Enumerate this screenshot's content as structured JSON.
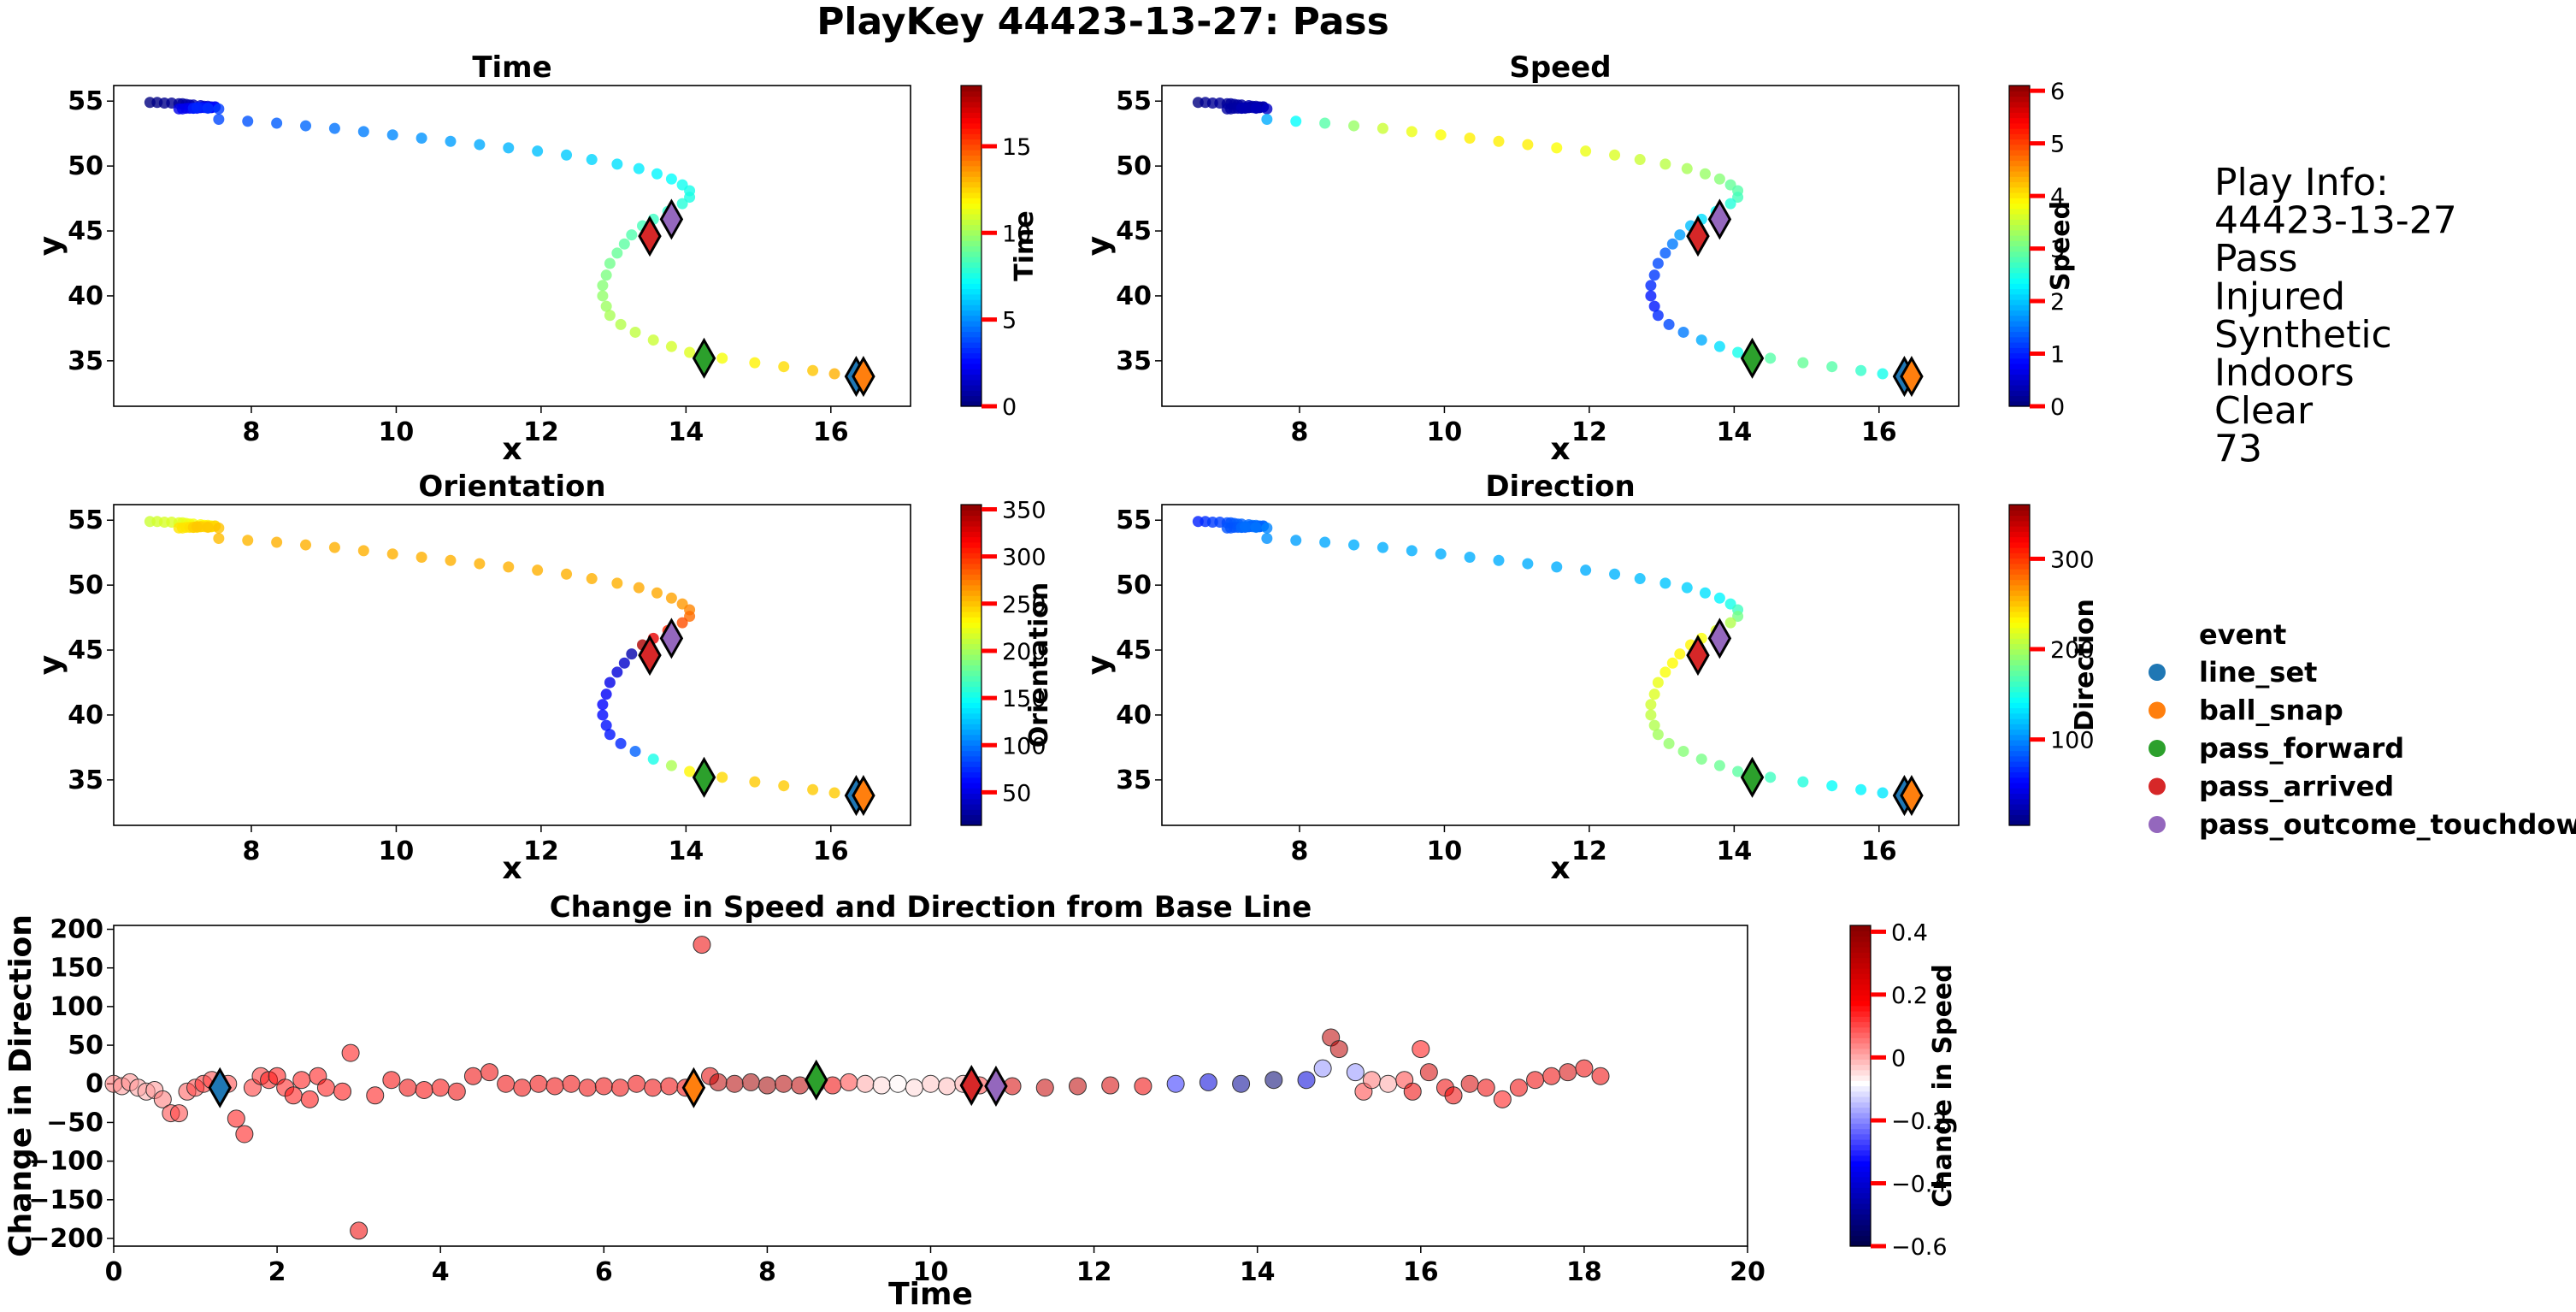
{
  "figure": {
    "title": "PlayKey 44423-13-27: Pass"
  },
  "play_info": {
    "lines": [
      "Play Info:",
      "44423-13-27",
      "Pass",
      "Injured",
      "Synthetic",
      "Indoors",
      "Clear",
      "73"
    ]
  },
  "legend": {
    "title": "event",
    "entries": [
      {
        "label": "line_set",
        "color": "#1f77b4"
      },
      {
        "label": "ball_snap",
        "color": "#ff7f0e"
      },
      {
        "label": "pass_forward",
        "color": "#2ca02c"
      },
      {
        "label": "pass_arrived",
        "color": "#d62728"
      },
      {
        "label": "pass_outcome_touchdown",
        "color": "#9467bd"
      }
    ]
  },
  "chart_data": [
    {
      "type": "scatter",
      "title": "Time",
      "xlabel": "x",
      "ylabel": "y",
      "xlim": [
        6.1,
        17.1
      ],
      "ylim": [
        31.5,
        56.2
      ],
      "xticks": [
        8,
        10,
        12,
        14,
        16
      ],
      "yticks": [
        35,
        40,
        45,
        50,
        55
      ],
      "colormap": "jet",
      "color_variable": "time",
      "colorbar": {
        "label": "Time",
        "range": [
          0,
          18.5
        ],
        "ticks": [
          0,
          5,
          10,
          15
        ]
      }
    },
    {
      "type": "scatter",
      "title": "Speed",
      "xlabel": "x",
      "ylabel": "y",
      "xlim": [
        6.1,
        17.1
      ],
      "ylim": [
        31.5,
        56.2
      ],
      "xticks": [
        8,
        10,
        12,
        14,
        16
      ],
      "yticks": [
        35,
        40,
        45,
        50,
        55
      ],
      "colormap": "jet",
      "color_variable": "speed",
      "colorbar": {
        "label": "Speed",
        "range": [
          0,
          6.1
        ],
        "ticks": [
          0,
          1,
          2,
          3,
          4,
          5,
          6
        ]
      }
    },
    {
      "type": "scatter",
      "title": "Orientation",
      "xlabel": "x",
      "ylabel": "y",
      "xlim": [
        6.1,
        17.1
      ],
      "ylim": [
        31.5,
        56.2
      ],
      "xticks": [
        8,
        10,
        12,
        14,
        16
      ],
      "yticks": [
        35,
        40,
        45,
        50,
        55
      ],
      "colormap": "jet",
      "color_variable": "orientation",
      "colorbar": {
        "label": "Orientation",
        "range": [
          15,
          355
        ],
        "ticks": [
          50,
          100,
          150,
          200,
          250,
          300,
          350
        ]
      }
    },
    {
      "type": "scatter",
      "title": "Direction",
      "xlabel": "x",
      "ylabel": "y",
      "xlim": [
        6.1,
        17.1
      ],
      "ylim": [
        31.5,
        56.2
      ],
      "xticks": [
        8,
        10,
        12,
        14,
        16
      ],
      "yticks": [
        35,
        40,
        45,
        50,
        55
      ],
      "colormap": "jet",
      "color_variable": "direction",
      "colorbar": {
        "label": "Direction",
        "range": [
          5,
          360
        ],
        "ticks": [
          100,
          200,
          300
        ]
      }
    },
    {
      "type": "scatter",
      "title": "Change in Speed and Direction from Base Line",
      "xlabel": "Time",
      "ylabel": "Change in Direction",
      "xlim": [
        0,
        20
      ],
      "ylim": [
        -210,
        205
      ],
      "xticks": [
        0,
        2,
        4,
        6,
        8,
        10,
        12,
        14,
        16,
        18,
        20
      ],
      "yticks": [
        -200,
        -150,
        -100,
        -50,
        0,
        50,
        100,
        150,
        200
      ],
      "colormap": "seismic",
      "color_variable": "change_in_speed",
      "colorbar": {
        "label": "Change in Speed",
        "range": [
          -0.6,
          0.42
        ],
        "ticks": [
          -0.6,
          -0.4,
          -0.2,
          0.0,
          0.2,
          0.4
        ]
      }
    }
  ],
  "trajectory": [
    {
      "t": 0.0,
      "x": 6.6,
      "y": 54.9,
      "s": 0.0,
      "o": 210,
      "dir": 60,
      "dchg": 0
    },
    {
      "t": 0.1,
      "x": 6.7,
      "y": 54.9,
      "s": 0.1,
      "o": 212,
      "dir": 65,
      "dchg": -3
    },
    {
      "t": 0.2,
      "x": 6.8,
      "y": 54.85,
      "s": 0.12,
      "o": 214,
      "dir": 70,
      "dchg": 2
    },
    {
      "t": 0.3,
      "x": 6.9,
      "y": 54.85,
      "s": 0.14,
      "o": 215,
      "dir": 72,
      "dchg": -5
    },
    {
      "t": 0.4,
      "x": 7.0,
      "y": 54.8,
      "s": 0.15,
      "o": 216,
      "dir": 75,
      "dchg": -10
    },
    {
      "t": 0.5,
      "x": 7.05,
      "y": 54.8,
      "s": 0.16,
      "o": 218,
      "dir": 78,
      "dchg": -8
    },
    {
      "t": 0.6,
      "x": 7.1,
      "y": 54.75,
      "s": 0.18,
      "o": 220,
      "dir": 80,
      "dchg": -20
    },
    {
      "t": 0.7,
      "x": 7.15,
      "y": 54.7,
      "s": 0.18,
      "o": 222,
      "dir": 82,
      "dchg": -38
    },
    {
      "t": 0.8,
      "x": 7.2,
      "y": 54.7,
      "s": 0.2,
      "o": 224,
      "dir": 84,
      "dchg": -38
    },
    {
      "t": 0.9,
      "x": 7.3,
      "y": 54.65,
      "s": 0.2,
      "o": 226,
      "dir": 86,
      "dchg": -10
    },
    {
      "t": 1.0,
      "x": 7.35,
      "y": 54.6,
      "s": 0.22,
      "o": 228,
      "dir": 88,
      "dchg": -5
    },
    {
      "t": 1.1,
      "x": 7.4,
      "y": 54.6,
      "s": 0.22,
      "o": 230,
      "dir": 88,
      "dchg": 0
    },
    {
      "t": 1.2,
      "x": 7.45,
      "y": 54.55,
      "s": 0.24,
      "o": 230,
      "dir": 88,
      "dchg": 5
    },
    {
      "t": 1.3,
      "x": 7.5,
      "y": 54.55,
      "s": 0.24,
      "o": 232,
      "dir": 88,
      "dchg": -5
    },
    {
      "t": 1.4,
      "x": 7.45,
      "y": 54.5,
      "s": 0.22,
      "o": 232,
      "dir": 86,
      "dchg": 0
    },
    {
      "t": 1.5,
      "x": 7.4,
      "y": 54.5,
      "s": 0.2,
      "o": 234,
      "dir": 85,
      "dchg": -45
    },
    {
      "t": 1.6,
      "x": 7.3,
      "y": 54.5,
      "s": 0.2,
      "o": 234,
      "dir": 84,
      "dchg": -65
    },
    {
      "t": 1.7,
      "x": 7.2,
      "y": 54.45,
      "s": 0.22,
      "o": 235,
      "dir": 82,
      "dchg": -5
    },
    {
      "t": 1.8,
      "x": 7.1,
      "y": 54.45,
      "s": 0.2,
      "o": 235,
      "dir": 80,
      "dchg": 10
    },
    {
      "t": 1.9,
      "x": 7.0,
      "y": 54.4,
      "s": 0.2,
      "o": 236,
      "dir": 78,
      "dchg": 5
    },
    {
      "t": 2.0,
      "x": 7.05,
      "y": 54.4,
      "s": 0.2,
      "o": 236,
      "dir": 78,
      "dchg": 10
    },
    {
      "t": 2.1,
      "x": 7.15,
      "y": 54.45,
      "s": 0.22,
      "o": 238,
      "dir": 80,
      "dchg": -5
    },
    {
      "t": 2.2,
      "x": 7.25,
      "y": 54.45,
      "s": 0.22,
      "o": 238,
      "dir": 80,
      "dchg": -15
    },
    {
      "t": 2.3,
      "x": 7.35,
      "y": 54.5,
      "s": 0.24,
      "o": 240,
      "dir": 82,
      "dchg": 5
    },
    {
      "t": 2.4,
      "x": 7.45,
      "y": 54.5,
      "s": 0.24,
      "o": 240,
      "dir": 82,
      "dchg": -20
    },
    {
      "t": 2.5,
      "x": 7.5,
      "y": 54.55,
      "s": 0.26,
      "o": 242,
      "dir": 84,
      "dchg": 10
    },
    {
      "t": 2.6,
      "x": 7.4,
      "y": 54.5,
      "s": 0.26,
      "o": 242,
      "dir": 84,
      "dchg": -5
    },
    {
      "t": 2.8,
      "x": 7.3,
      "y": 54.5,
      "s": 0.28,
      "o": 244,
      "dir": 86,
      "dchg": -10
    },
    {
      "t": 2.9,
      "x": 7.2,
      "y": 54.45,
      "s": 0.3,
      "o": 244,
      "dir": 86,
      "dchg": 40
    },
    {
      "t": 3.0,
      "x": 7.25,
      "y": 54.5,
      "s": 0.3,
      "o": 246,
      "dir": 88,
      "dchg": -190
    },
    {
      "t": 3.2,
      "x": 7.4,
      "y": 54.45,
      "s": 0.35,
      "o": 246,
      "dir": 90,
      "dchg": -15
    },
    {
      "t": 3.4,
      "x": 7.55,
      "y": 54.4,
      "s": 0.4,
      "o": 248,
      "dir": 95,
      "dchg": 5
    },
    {
      "t": 3.6,
      "x": 7.55,
      "y": 53.6,
      "s": 1.8,
      "o": 250,
      "dir": 100,
      "dchg": -5
    },
    {
      "t": 3.8,
      "x": 7.95,
      "y": 53.45,
      "s": 2.3,
      "o": 252,
      "dir": 105,
      "dchg": -8
    },
    {
      "t": 4.0,
      "x": 8.35,
      "y": 53.3,
      "s": 2.8,
      "o": 254,
      "dir": 108,
      "dchg": -5
    },
    {
      "t": 4.2,
      "x": 8.75,
      "y": 53.1,
      "s": 3.2,
      "o": 254,
      "dir": 110,
      "dchg": -10
    },
    {
      "t": 4.4,
      "x": 9.15,
      "y": 52.9,
      "s": 3.5,
      "o": 254,
      "dir": 110,
      "dchg": 10
    },
    {
      "t": 4.6,
      "x": 9.55,
      "y": 52.65,
      "s": 3.7,
      "o": 254,
      "dir": 110,
      "dchg": 15
    },
    {
      "t": 4.8,
      "x": 9.95,
      "y": 52.4,
      "s": 3.8,
      "o": 254,
      "dir": 110,
      "dchg": 0
    },
    {
      "t": 5.0,
      "x": 10.35,
      "y": 52.15,
      "s": 3.9,
      "o": 254,
      "dir": 110,
      "dchg": -5
    },
    {
      "t": 5.2,
      "x": 10.75,
      "y": 51.9,
      "s": 3.9,
      "o": 254,
      "dir": 110,
      "dchg": 0
    },
    {
      "t": 5.4,
      "x": 11.15,
      "y": 51.65,
      "s": 3.9,
      "o": 254,
      "dir": 110,
      "dchg": -3
    },
    {
      "t": 5.6,
      "x": 11.55,
      "y": 51.4,
      "s": 3.8,
      "o": 254,
      "dir": 110,
      "dchg": 0
    },
    {
      "t": 5.8,
      "x": 11.95,
      "y": 51.15,
      "s": 3.7,
      "o": 254,
      "dir": 110,
      "dchg": -5
    },
    {
      "t": 6.0,
      "x": 12.35,
      "y": 50.85,
      "s": 3.6,
      "o": 254,
      "dir": 112,
      "dchg": -3
    },
    {
      "t": 6.2,
      "x": 12.7,
      "y": 50.5,
      "s": 3.5,
      "o": 254,
      "dir": 115,
      "dchg": -5
    },
    {
      "t": 6.4,
      "x": 13.05,
      "y": 50.15,
      "s": 3.4,
      "o": 254,
      "dir": 118,
      "dchg": 0
    },
    {
      "t": 6.6,
      "x": 13.35,
      "y": 49.8,
      "s": 3.3,
      "o": 256,
      "dir": 122,
      "dchg": -5
    },
    {
      "t": 6.8,
      "x": 13.6,
      "y": 49.4,
      "s": 3.2,
      "o": 256,
      "dir": 128,
      "dchg": -3
    },
    {
      "t": 7.0,
      "x": 13.8,
      "y": 49.0,
      "s": 3.1,
      "o": 258,
      "dir": 135,
      "dchg": -5
    },
    {
      "t": 7.2,
      "x": 13.95,
      "y": 48.55,
      "s": 2.9,
      "o": 262,
      "dir": 145,
      "dchg": 180
    },
    {
      "t": 7.3,
      "x": 14.05,
      "y": 48.1,
      "s": 2.8,
      "o": 268,
      "dir": 160,
      "dchg": 10
    },
    {
      "t": 7.4,
      "x": 14.05,
      "y": 47.6,
      "s": 2.7,
      "o": 276,
      "dir": 180,
      "dchg": 2
    },
    {
      "t": 7.6,
      "x": 13.95,
      "y": 47.1,
      "s": 2.5,
      "o": 286,
      "dir": 200,
      "dchg": 0
    },
    {
      "t": 7.8,
      "x": 13.75,
      "y": 46.5,
      "s": 2.3,
      "o": 300,
      "dir": 215,
      "dchg": 2
    },
    {
      "t": 8.0,
      "x": 13.55,
      "y": 45.9,
      "s": 2.1,
      "o": 320,
      "dir": 225,
      "dchg": -2
    },
    {
      "t": 8.2,
      "x": 13.4,
      "y": 45.4,
      "s": 1.9,
      "o": 340,
      "dir": 230,
      "dchg": 0
    },
    {
      "t": 8.4,
      "x": 13.25,
      "y": 44.7,
      "s": 1.7,
      "o": 30,
      "dir": 230,
      "dchg": -2
    },
    {
      "t": 8.6,
      "x": 13.15,
      "y": 44.0,
      "s": 1.5,
      "o": 40,
      "dir": 228,
      "dchg": 0
    },
    {
      "t": 8.8,
      "x": 13.05,
      "y": 43.3,
      "s": 1.3,
      "o": 45,
      "dir": 225,
      "dchg": -2
    },
    {
      "t": 9.0,
      "x": 12.95,
      "y": 42.5,
      "s": 1.2,
      "o": 50,
      "dir": 220,
      "dchg": 2
    },
    {
      "t": 9.2,
      "x": 12.9,
      "y": 41.6,
      "s": 1.1,
      "o": 55,
      "dir": 215,
      "dchg": 0
    },
    {
      "t": 9.4,
      "x": 12.85,
      "y": 40.8,
      "s": 1.0,
      "o": 58,
      "dir": 210,
      "dchg": -2
    },
    {
      "t": 9.6,
      "x": 12.85,
      "y": 40.0,
      "s": 0.9,
      "o": 60,
      "dir": 205,
      "dchg": 0
    },
    {
      "t": 9.8,
      "x": 12.9,
      "y": 39.2,
      "s": 0.9,
      "o": 62,
      "dir": 200,
      "dchg": -5
    },
    {
      "t": 10.0,
      "x": 12.95,
      "y": 38.5,
      "s": 1.0,
      "o": 64,
      "dir": 195,
      "dchg": 0
    },
    {
      "t": 10.2,
      "x": 13.1,
      "y": 37.8,
      "s": 1.2,
      "o": 70,
      "dir": 190,
      "dchg": -3
    },
    {
      "t": 10.4,
      "x": 13.3,
      "y": 37.2,
      "s": 1.5,
      "o": 90,
      "dir": 185,
      "dchg": 0
    },
    {
      "t": 10.6,
      "x": 13.55,
      "y": 36.6,
      "s": 1.8,
      "o": 150,
      "dir": 180,
      "dchg": -2
    },
    {
      "t": 10.8,
      "x": 13.8,
      "y": 36.1,
      "s": 2.1,
      "o": 200,
      "dir": 175,
      "dchg": 0
    },
    {
      "t": 11.0,
      "x": 14.05,
      "y": 35.65,
      "s": 2.4,
      "o": 230,
      "dir": 170,
      "dchg": -3
    },
    {
      "t": 11.4,
      "x": 14.5,
      "y": 35.2,
      "s": 2.8,
      "o": 240,
      "dir": 160,
      "dchg": -5
    },
    {
      "t": 11.8,
      "x": 14.95,
      "y": 34.85,
      "s": 2.9,
      "o": 245,
      "dir": 150,
      "dchg": -3
    },
    {
      "t": 12.2,
      "x": 15.35,
      "y": 34.55,
      "s": 2.8,
      "o": 245,
      "dir": 140,
      "dchg": -2
    },
    {
      "t": 12.6,
      "x": 15.75,
      "y": 34.25,
      "s": 2.6,
      "o": 245,
      "dir": 135,
      "dchg": -3
    },
    {
      "t": 13.0,
      "x": 16.05,
      "y": 34.0,
      "s": 2.4,
      "o": 245,
      "dir": 130,
      "dchg": 0
    },
    {
      "t": 13.4,
      "x": 16.3,
      "y": 33.85,
      "s": 2.0,
      "o": 245,
      "dir": 125,
      "dchg": 2
    },
    {
      "t": 13.8,
      "x": 16.4,
      "y": 33.8,
      "s": 1.6,
      "o": 245,
      "dir": 120,
      "dchg": 0
    },
    {
      "t": 14.2,
      "x": 16.45,
      "y": 33.75,
      "s": 1.2,
      "o": 245,
      "dir": 115,
      "dchg": 5
    },
    {
      "t": 14.6,
      "x": 16.48,
      "y": 33.75,
      "s": 0.8,
      "o": 245,
      "dir": 110,
      "dchg": 5
    },
    {
      "t": 14.8,
      "x": 16.5,
      "y": 33.7,
      "s": 0.6,
      "o": 245,
      "dir": 108,
      "dchg": 20
    },
    {
      "t": 14.9,
      "x": 16.5,
      "y": 33.7,
      "s": 0.5,
      "o": 245,
      "dir": 106,
      "dchg": 60
    },
    {
      "t": 15.0,
      "x": 16.5,
      "y": 33.7,
      "s": 0.5,
      "o": 245,
      "dir": 105,
      "dchg": 45
    },
    {
      "t": 15.2,
      "x": 16.5,
      "y": 33.7,
      "s": 0.4,
      "o": 245,
      "dir": 105,
      "dchg": 15
    },
    {
      "t": 15.3,
      "x": 16.5,
      "y": 33.7,
      "s": 0.4,
      "o": 245,
      "dir": 105,
      "dchg": -10
    },
    {
      "t": 15.4,
      "x": 16.5,
      "y": 33.7,
      "s": 0.4,
      "o": 245,
      "dir": 105,
      "dchg": 5
    },
    {
      "t": 15.6,
      "x": 16.5,
      "y": 33.7,
      "s": 0.4,
      "o": 245,
      "dir": 105,
      "dchg": 0
    },
    {
      "t": 15.8,
      "x": 16.5,
      "y": 33.7,
      "s": 0.4,
      "o": 245,
      "dir": 105,
      "dchg": 5
    },
    {
      "t": 15.9,
      "x": 16.5,
      "y": 33.7,
      "s": 0.4,
      "o": 245,
      "dir": 105,
      "dchg": -10
    },
    {
      "t": 16.0,
      "x": 16.5,
      "y": 33.7,
      "s": 0.4,
      "o": 245,
      "dir": 105,
      "dchg": 45
    },
    {
      "t": 16.1,
      "x": 16.5,
      "y": 33.7,
      "s": 0.4,
      "o": 245,
      "dir": 105,
      "dchg": 15
    },
    {
      "t": 16.3,
      "x": 16.5,
      "y": 33.7,
      "s": 0.4,
      "o": 245,
      "dir": 105,
      "dchg": -5
    },
    {
      "t": 16.4,
      "x": 16.5,
      "y": 33.7,
      "s": 0.4,
      "o": 245,
      "dir": 105,
      "dchg": -15
    },
    {
      "t": 16.6,
      "x": 16.5,
      "y": 33.7,
      "s": 0.4,
      "o": 245,
      "dir": 105,
      "dchg": 0
    },
    {
      "t": 16.8,
      "x": 16.5,
      "y": 33.7,
      "s": 0.4,
      "o": 245,
      "dir": 105,
      "dchg": -5
    },
    {
      "t": 17.0,
      "x": 16.5,
      "y": 33.7,
      "s": 0.4,
      "o": 245,
      "dir": 105,
      "dchg": -20
    },
    {
      "t": 17.2,
      "x": 16.5,
      "y": 33.7,
      "s": 0.4,
      "o": 245,
      "dir": 105,
      "dchg": -5
    },
    {
      "t": 17.4,
      "x": 16.5,
      "y": 33.7,
      "s": 0.4,
      "o": 245,
      "dir": 105,
      "dchg": 5
    },
    {
      "t": 17.6,
      "x": 16.5,
      "y": 33.7,
      "s": 0.4,
      "o": 245,
      "dir": 105,
      "dchg": 10
    },
    {
      "t": 17.8,
      "x": 16.5,
      "y": 33.7,
      "s": 0.4,
      "o": 245,
      "dir": 105,
      "dchg": 15
    },
    {
      "t": 18.0,
      "x": 16.5,
      "y": 33.7,
      "s": 0.4,
      "o": 245,
      "dir": 105,
      "dchg": 20
    },
    {
      "t": 18.2,
      "x": 16.5,
      "y": 33.7,
      "s": 0.4,
      "o": 245,
      "dir": 105,
      "dchg": 10
    }
  ],
  "speed_change": [
    0.05,
    0.02,
    0.03,
    0.01,
    0.0,
    0.02,
    0.05,
    0.1,
    0.1,
    0.08,
    0.1,
    0.12,
    0.1,
    0.12,
    0.1,
    0.15,
    0.15,
    0.12,
    0.12,
    0.14,
    0.15,
    0.14,
    0.15,
    0.15,
    0.16,
    0.15,
    0.15,
    0.16,
    0.15,
    0.2,
    0.15,
    0.18,
    0.2,
    0.18,
    0.18,
    0.2,
    0.2,
    0.2,
    0.2,
    0.2,
    0.2,
    0.2,
    0.2,
    0.2,
    0.2,
    0.2,
    0.2,
    0.2,
    0.2,
    0.2,
    0.2,
    0.22,
    0.3,
    0.32,
    0.35,
    0.35,
    0.32,
    0.3,
    0.25,
    0.2,
    0.1,
    0.0,
    -0.05,
    -0.08,
    -0.05,
    -0.03,
    -0.02,
    0.0,
    0.1,
    0.2,
    0.25,
    0.28,
    0.3,
    0.25,
    0.2,
    -0.3,
    -0.4,
    -0.5,
    -0.55,
    -0.4,
    -0.2,
    0.3,
    0.3,
    -0.2,
    0.1,
    0.05,
    0.0,
    0.1,
    0.2,
    0.15,
    0.25,
    0.2,
    0.2,
    0.25,
    0.2,
    0.15,
    0.2,
    0.2,
    0.2,
    0.25,
    0.2,
    0.2,
    0.25,
    0.22
  ],
  "events": [
    {
      "event": "line_set",
      "t": 1.3,
      "x": 16.35,
      "y": 33.8,
      "dchg": -5
    },
    {
      "event": "ball_snap",
      "t": 7.1,
      "x": 16.45,
      "y": 33.8,
      "dchg": -5
    },
    {
      "event": "pass_forward",
      "t": 8.6,
      "x": 14.25,
      "y": 35.2,
      "dchg": 5
    },
    {
      "event": "pass_arrived",
      "t": 10.5,
      "x": 13.5,
      "y": 44.6,
      "dchg": -2
    },
    {
      "event": "pass_outcome_touchdown",
      "t": 10.8,
      "x": 13.8,
      "y": 45.9,
      "dchg": -3
    }
  ]
}
